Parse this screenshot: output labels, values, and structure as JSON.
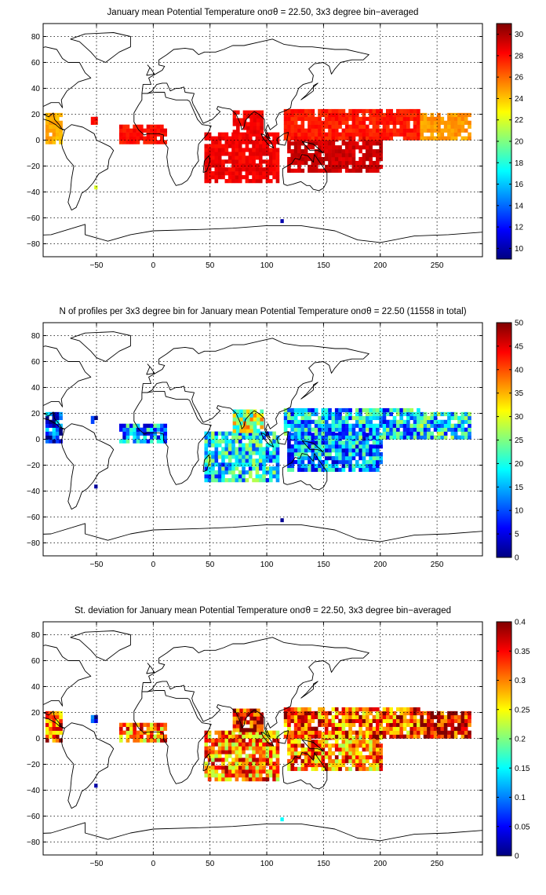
{
  "chart_data": [
    {
      "type": "heatmap",
      "title": "January mean Potential Temperature on",
      "title_symbol": "σθ",
      "title_rest": " = 22.50, 3x3 degree bin−averaged",
      "xticks": [
        "−50",
        "0",
        "50",
        "100",
        "150",
        "200",
        "250"
      ],
      "xtick_values": [
        -50,
        0,
        50,
        100,
        150,
        200,
        250
      ],
      "yticks": [
        "80",
        "60",
        "40",
        "20",
        "0",
        "−20",
        "−40",
        "−60",
        "−80"
      ],
      "ytick_values": [
        80,
        60,
        40,
        20,
        0,
        -20,
        -40,
        -60,
        -80
      ],
      "xlim": [
        -97,
        290
      ],
      "ylim": [
        -90,
        90
      ],
      "grid": true,
      "colorbar": {
        "ticks": [
          "30",
          "28",
          "26",
          "24",
          "22",
          "20",
          "18",
          "16",
          "14",
          "12",
          "10"
        ],
        "tick_values": [
          30,
          28,
          26,
          24,
          22,
          20,
          18,
          16,
          14,
          12,
          10
        ],
        "clim": [
          9,
          31
        ],
        "colormap": "jet"
      },
      "regions": [
        {
          "lon": [
            -95,
            -80
          ],
          "lat": [
            -3,
            20
          ],
          "value": 24.5
        },
        {
          "lon": [
            -55,
            -50
          ],
          "lat": [
            12,
            18
          ],
          "value": 28
        },
        {
          "lon": [
            -30,
            12
          ],
          "lat": [
            -3,
            12
          ],
          "value": 28
        },
        {
          "lon": [
            45,
            110
          ],
          "lat": [
            -33,
            5
          ],
          "value": 28.5
        },
        {
          "lon": [
            70,
            95
          ],
          "lat": [
            5,
            22
          ],
          "value": 28.5
        },
        {
          "lon": [
            118,
            200
          ],
          "lat": [
            -25,
            5
          ],
          "value": 29.3
        },
        {
          "lon": [
            115,
            235
          ],
          "lat": [
            0,
            22
          ],
          "value": 27.7
        },
        {
          "lon": [
            235,
            280
          ],
          "lat": [
            0,
            20
          ],
          "value": 25
        }
      ],
      "points": [
        {
          "lon": -52,
          "lat": -38,
          "value": 22
        },
        {
          "lon": 112,
          "lat": -64,
          "value": 10
        }
      ]
    },
    {
      "type": "heatmap",
      "title": "N of profiles per 3x3 degree bin for January mean Potential Temperature on",
      "title_symbol": "σθ",
      "title_rest": " = 22.50 (11558 in total)",
      "xticks": [
        "−50",
        "0",
        "50",
        "100",
        "150",
        "200",
        "250"
      ],
      "xtick_values": [
        -50,
        0,
        50,
        100,
        150,
        200,
        250
      ],
      "yticks": [
        "80",
        "60",
        "40",
        "20",
        "0",
        "−20",
        "−40",
        "−60",
        "−80"
      ],
      "ytick_values": [
        80,
        60,
        40,
        20,
        0,
        -20,
        -40,
        -60,
        -80
      ],
      "xlim": [
        -97,
        290
      ],
      "ylim": [
        -90,
        90
      ],
      "grid": true,
      "colorbar": {
        "ticks": [
          "50",
          "45",
          "40",
          "35",
          "30",
          "25",
          "20",
          "15",
          "10",
          "5",
          "0"
        ],
        "tick_values": [
          50,
          45,
          40,
          35,
          30,
          25,
          20,
          15,
          10,
          5,
          0
        ],
        "clim": [
          0,
          50
        ],
        "colormap": "jet"
      },
      "regions": [
        {
          "lon": [
            -95,
            -80
          ],
          "lat": [
            -3,
            20
          ],
          "value": 8
        },
        {
          "lon": [
            -55,
            -50
          ],
          "lat": [
            12,
            18
          ],
          "value": 3
        },
        {
          "lon": [
            -30,
            12
          ],
          "lat": [
            -3,
            12
          ],
          "value": 14
        },
        {
          "lon": [
            45,
            110
          ],
          "lat": [
            -33,
            5
          ],
          "value": 17
        },
        {
          "lon": [
            70,
            95
          ],
          "lat": [
            5,
            22
          ],
          "value": 28
        },
        {
          "lon": [
            118,
            200
          ],
          "lat": [
            -25,
            5
          ],
          "value": 14
        },
        {
          "lon": [
            115,
            235
          ],
          "lat": [
            0,
            22
          ],
          "value": 16
        },
        {
          "lon": [
            235,
            280
          ],
          "lat": [
            0,
            20
          ],
          "value": 18
        }
      ],
      "points": [
        {
          "lon": -52,
          "lat": -38,
          "value": 2
        },
        {
          "lon": 112,
          "lat": -64,
          "value": 1
        }
      ]
    },
    {
      "type": "heatmap",
      "title": "St. deviation for January mean Potential Temperature on",
      "title_symbol": "σθ",
      "title_rest": " = 22.50, 3x3 degree bin−averaged",
      "xticks": [
        "−50",
        "0",
        "50",
        "100",
        "150",
        "200",
        "250"
      ],
      "xtick_values": [
        -50,
        0,
        50,
        100,
        150,
        200,
        250
      ],
      "yticks": [
        "80",
        "60",
        "40",
        "20",
        "0",
        "−20",
        "−40",
        "−60",
        "−80"
      ],
      "ytick_values": [
        80,
        60,
        40,
        20,
        0,
        -20,
        -40,
        -60,
        -80
      ],
      "xlim": [
        -97,
        290
      ],
      "ylim": [
        -90,
        90
      ],
      "grid": true,
      "colorbar": {
        "ticks": [
          "0.4",
          "0.35",
          "0.3",
          "0.25",
          "0.2",
          "0.15",
          "0.1",
          "0.05",
          "0"
        ],
        "tick_values": [
          0.4,
          0.35,
          0.3,
          0.25,
          0.2,
          0.15,
          0.1,
          0.05,
          0
        ],
        "clim": [
          0,
          0.4
        ],
        "colormap": "jet"
      },
      "regions": [
        {
          "lon": [
            -95,
            -80
          ],
          "lat": [
            -3,
            20
          ],
          "value": 0.33
        },
        {
          "lon": [
            -55,
            -50
          ],
          "lat": [
            12,
            18
          ],
          "value": 0.02
        },
        {
          "lon": [
            -30,
            12
          ],
          "lat": [
            -3,
            12
          ],
          "value": 0.3
        },
        {
          "lon": [
            45,
            110
          ],
          "lat": [
            -33,
            5
          ],
          "value": 0.3
        },
        {
          "lon": [
            70,
            95
          ],
          "lat": [
            5,
            22
          ],
          "value": 0.36
        },
        {
          "lon": [
            118,
            200
          ],
          "lat": [
            -25,
            5
          ],
          "value": 0.3
        },
        {
          "lon": [
            115,
            235
          ],
          "lat": [
            0,
            22
          ],
          "value": 0.32
        },
        {
          "lon": [
            235,
            280
          ],
          "lat": [
            0,
            20
          ],
          "value": 0.36
        }
      ],
      "points": [
        {
          "lon": -52,
          "lat": -38,
          "value": 0.02
        },
        {
          "lon": 112,
          "lat": -64,
          "value": 0.15
        }
      ]
    }
  ]
}
